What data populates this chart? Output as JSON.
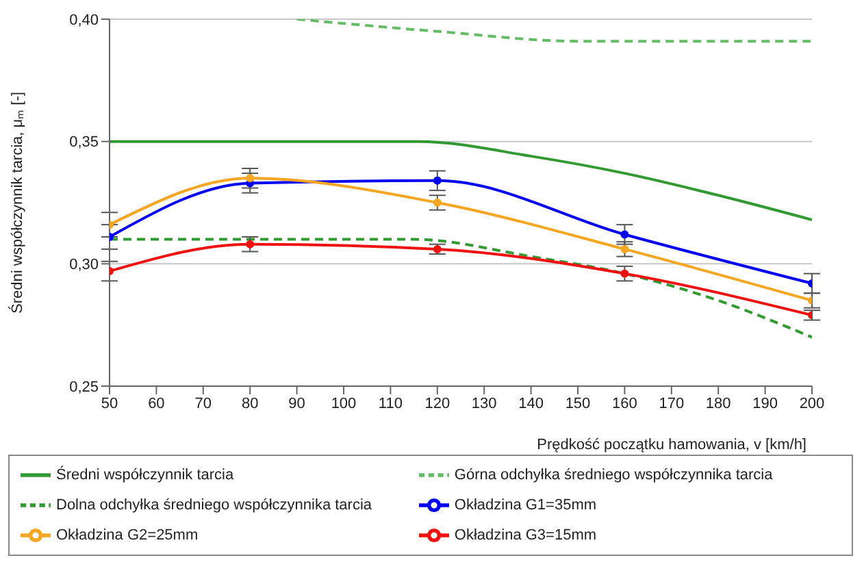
{
  "chart_data": {
    "type": "line",
    "xlabel": "Prędkość początku hamowania, v [km/h]",
    "ylabel": "Średni współczynnik tarcia, μₘ [-]",
    "xlim": [
      50,
      200
    ],
    "xticks": [
      50,
      60,
      70,
      80,
      90,
      100,
      110,
      120,
      130,
      140,
      150,
      160,
      170,
      180,
      190,
      200
    ],
    "ylim": [
      0.25,
      0.4
    ],
    "yticks": [
      {
        "value": 0.25,
        "label": "0,25"
      },
      {
        "value": 0.3,
        "label": "0,30"
      },
      {
        "value": 0.35,
        "label": "0,35"
      },
      {
        "value": 0.4,
        "label": "0,40"
      }
    ],
    "grid": "y",
    "legend": "bottom",
    "series": [
      {
        "name": "Średni współczynnik tarcia",
        "color": "#339933",
        "line_style": "solid",
        "marker": "none",
        "x": [
          50,
          116,
          140,
          160,
          180,
          200
        ],
        "values": [
          0.35,
          0.35,
          0.344,
          0.337,
          0.328,
          0.318
        ]
      },
      {
        "name": "Górna odchyłka średniego współczynnika tarcia",
        "color": "#66bb66",
        "line_style": "dashed",
        "marker": "none",
        "x": [
          90,
          120,
          150,
          200
        ],
        "values": [
          0.4,
          0.395,
          0.391,
          0.391
        ]
      },
      {
        "name": "Dolna odchyłka średniego współczynnika tarcia",
        "color": "#339933",
        "line_style": "dashed",
        "marker": "none",
        "x": [
          50,
          115,
          140,
          160,
          180,
          200
        ],
        "values": [
          0.31,
          0.31,
          0.303,
          0.296,
          0.285,
          0.27
        ]
      },
      {
        "name": "Okładzina G1=35mm",
        "color": "#0000ee",
        "line_style": "solid",
        "marker": "circle",
        "x": [
          50,
          80,
          120,
          160,
          200
        ],
        "values": [
          0.311,
          0.333,
          0.334,
          0.312,
          0.292
        ],
        "errors": [
          0.005,
          0.004,
          0.004,
          0.004,
          0.004
        ]
      },
      {
        "name": "Okładzina G2=25mm",
        "color": "#f5a623",
        "line_style": "solid",
        "marker": "circle",
        "x": [
          50,
          80,
          120,
          160,
          200
        ],
        "values": [
          0.316,
          0.335,
          0.325,
          0.306,
          0.285
        ],
        "errors": [
          0.005,
          0.004,
          0.003,
          0.003,
          0.003
        ]
      },
      {
        "name": "Okładzina G3=15mm",
        "color": "#ee1111",
        "line_style": "solid",
        "marker": "circle",
        "x": [
          50,
          80,
          120,
          160,
          200
        ],
        "values": [
          0.297,
          0.308,
          0.306,
          0.296,
          0.279
        ],
        "errors": [
          0.004,
          0.003,
          0.002,
          0.003,
          0.002
        ]
      }
    ]
  }
}
